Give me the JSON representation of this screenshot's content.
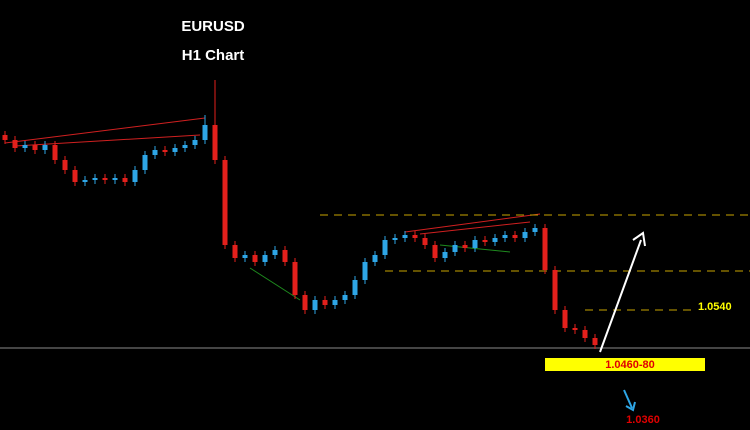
{
  "chart_data": {
    "type": "candlestick",
    "title": "EURUSD",
    "subtitle": "H1 Chart",
    "open": [
      1.089,
      1.088,
      1.0864,
      1.087,
      1.086,
      1.087,
      1.084,
      1.082,
      1.0796,
      1.08,
      1.0804,
      1.08,
      1.0804,
      1.0796,
      1.082,
      1.085,
      1.086,
      1.0856,
      1.0864,
      1.087,
      1.088,
      1.091,
      1.084,
      1.067,
      1.0644,
      1.065,
      1.0636,
      1.065,
      1.066,
      1.0636,
      1.057,
      1.054,
      1.056,
      1.055,
      1.056,
      1.057,
      1.06,
      1.0636,
      1.065,
      1.068,
      1.0684,
      1.069,
      1.0684,
      1.067,
      1.0644,
      1.0656,
      1.067,
      1.0664,
      1.068,
      1.0676,
      1.0684,
      1.069,
      1.0684,
      1.0696,
      1.0704,
      1.062,
      1.054,
      1.0504,
      1.05,
      1.0484
    ],
    "high": [
      1.0898,
      1.0888,
      1.0878,
      1.0878,
      1.0878,
      1.0878,
      1.0848,
      1.0828,
      1.0808,
      1.0812,
      1.0812,
      1.0812,
      1.0812,
      1.0828,
      1.0858,
      1.0868,
      1.0868,
      1.0872,
      1.0878,
      1.0888,
      1.093,
      1.1,
      1.0848,
      1.0678,
      1.0658,
      1.0658,
      1.0658,
      1.0668,
      1.0668,
      1.0644,
      1.0578,
      1.0568,
      1.0568,
      1.0568,
      1.0578,
      1.0608,
      1.0644,
      1.0658,
      1.0688,
      1.0692,
      1.0698,
      1.0698,
      1.0692,
      1.0678,
      1.0664,
      1.0678,
      1.0678,
      1.0688,
      1.0688,
      1.0692,
      1.0698,
      1.0698,
      1.0704,
      1.0712,
      1.0712,
      1.0628,
      1.0548,
      1.0512,
      1.0508,
      1.0492
    ],
    "low": [
      1.0872,
      1.0856,
      1.0856,
      1.0852,
      1.0852,
      1.0832,
      1.0812,
      1.0788,
      1.0788,
      1.0792,
      1.0792,
      1.0792,
      1.0788,
      1.0788,
      1.0812,
      1.0842,
      1.0848,
      1.0848,
      1.0856,
      1.0862,
      1.0872,
      1.0832,
      1.0662,
      1.0636,
      1.0636,
      1.0628,
      1.0628,
      1.0642,
      1.0628,
      1.0562,
      1.0532,
      1.0532,
      1.0542,
      1.0542,
      1.0552,
      1.0562,
      1.0592,
      1.0628,
      1.0642,
      1.0672,
      1.0676,
      1.0676,
      1.0662,
      1.0636,
      1.0636,
      1.0648,
      1.0656,
      1.0656,
      1.0668,
      1.0668,
      1.0676,
      1.0676,
      1.0676,
      1.0688,
      1.0612,
      1.0532,
      1.0496,
      1.0492,
      1.0476,
      1.0462
    ],
    "close": [
      1.088,
      1.0864,
      1.087,
      1.086,
      1.087,
      1.084,
      1.082,
      1.0796,
      1.08,
      1.0804,
      1.08,
      1.0804,
      1.0796,
      1.082,
      1.085,
      1.086,
      1.0856,
      1.0864,
      1.087,
      1.088,
      1.091,
      1.084,
      1.067,
      1.0644,
      1.065,
      1.0636,
      1.065,
      1.066,
      1.0636,
      1.057,
      1.054,
      1.056,
      1.055,
      1.056,
      1.057,
      1.06,
      1.0636,
      1.065,
      1.068,
      1.0684,
      1.069,
      1.0684,
      1.067,
      1.0644,
      1.0656,
      1.067,
      1.0664,
      1.068,
      1.0676,
      1.0684,
      1.069,
      1.0684,
      1.0696,
      1.0704,
      1.062,
      1.054,
      1.0504,
      1.05,
      1.0484,
      1.047
    ],
    "up_color": "#2ea6e6",
    "down_color": "#e3201c",
    "ylim": [
      1.03,
      1.116
    ],
    "levels": [
      1.073,
      1.0618,
      {
        "value": 1.054,
        "label": "1.0540"
      },
      1.0464
    ],
    "annotations": [
      "1.0460-80",
      "1.0360"
    ]
  }
}
